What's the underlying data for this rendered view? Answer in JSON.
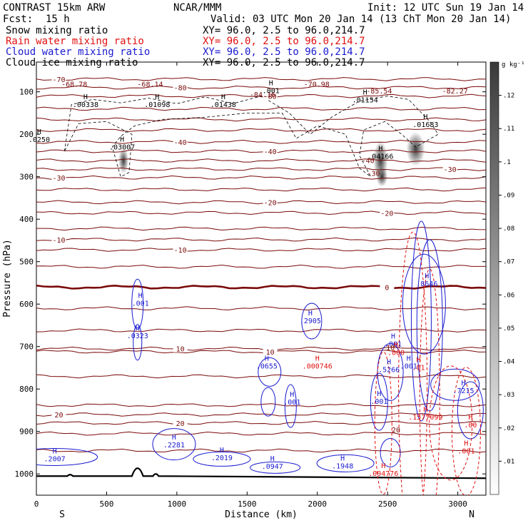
{
  "header": {
    "model": "CONTRAST 15km ARW",
    "org": "NCAR/MMM",
    "init": "Init: 12 UTC Sun 19 Jan 14",
    "fcst_label": "Fcst:",
    "fcst_value": "15 h",
    "valid": "Valid: 03 UTC Mon 20 Jan 14 (13 ChT Mon 20 Jan 14)"
  },
  "legend": [
    {
      "label": "Snow mixing ratio",
      "xy": "XY=  96.0,  2.5 to  96.0,214.7",
      "color": "#000000"
    },
    {
      "label": "Rain water mixing ratio",
      "xy": "XY=  96.0,  2.5 to  96.0,214.7",
      "color": "#e01010"
    },
    {
      "label": "Cloud water mixing ratio",
      "xy": "XY=  96.0,  2.5 to  96.0,214.7",
      "color": "#1a1ad0"
    },
    {
      "label": "Cloud ice mixing ratio",
      "xy": "XY=  96.0,  2.5 to  96.0,214.7",
      "color": "#000000"
    }
  ],
  "colorbar": {
    "unit": "g kg⁻¹",
    "levels": [
      ".01",
      ".02",
      ".03",
      ".04",
      ".05",
      ".06",
      ".07",
      ".08",
      ".09",
      ".1",
      ".11",
      ".12"
    ]
  },
  "chart_data": {
    "type": "cross-section",
    "xlabel": "Distance (km)",
    "ylabel": "Pressure (hPa)",
    "xlim": [
      0,
      3200
    ],
    "ylim": [
      1050,
      30
    ],
    "x_ticks": [
      0,
      500,
      1000,
      1500,
      2000,
      2500,
      3000
    ],
    "y_ticks": [
      100,
      200,
      300,
      400,
      500,
      600,
      700,
      800,
      900,
      1000
    ],
    "x_end_labels": {
      "left": "S",
      "right": "N"
    },
    "temperature_isotherms": [
      {
        "p": 70,
        "label": "-70"
      },
      {
        "p": 90,
        "label": "-80"
      },
      {
        "p": 110,
        "label": "-80"
      },
      {
        "p": 140,
        "label": ""
      },
      {
        "p": 165,
        "label": ""
      },
      {
        "p": 190,
        "label": ""
      },
      {
        "p": 218,
        "label": "-40"
      },
      {
        "p": 240,
        "label": "-40"
      },
      {
        "p": 262,
        "label": ""
      },
      {
        "p": 282,
        "label": "-30"
      },
      {
        "p": 302,
        "label": "-30"
      },
      {
        "p": 330,
        "label": ""
      },
      {
        "p": 360,
        "label": "-20"
      },
      {
        "p": 385,
        "label": "-20"
      },
      {
        "p": 422,
        "label": ""
      },
      {
        "p": 448,
        "label": "-10"
      },
      {
        "p": 472,
        "label": "-10"
      },
      {
        "p": 512,
        "label": ""
      },
      {
        "p": 560,
        "label": "0",
        "bold": true
      },
      {
        "p": 610,
        "label": ""
      },
      {
        "p": 662,
        "label": ""
      },
      {
        "p": 705,
        "label": "10"
      },
      {
        "p": 712,
        "label": "10"
      },
      {
        "p": 770,
        "label": ""
      },
      {
        "p": 838,
        "label": ""
      },
      {
        "p": 860,
        "label": "20"
      },
      {
        "p": 880,
        "label": "20"
      },
      {
        "p": 905,
        "label": ""
      },
      {
        "p": 945,
        "label": ""
      }
    ],
    "surface_pressure": 1005,
    "min_labels": [
      {
        "x": 270,
        "p": 88,
        "text": "-68.78"
      },
      {
        "x": 810,
        "p": 88,
        "text": "-68.14"
      },
      {
        "x": 1995,
        "p": 88,
        "text": "-70.98"
      },
      {
        "x": 1610,
        "p": 112,
        "text": "-84.16"
      },
      {
        "x": 2440,
        "p": 104,
        "text": "-85.54"
      },
      {
        "x": 2980,
        "p": 104,
        "text": "-82.27"
      }
    ],
    "snow_maxima": [
      {
        "x": 350,
        "p": 136,
        "text": ".00338"
      },
      {
        "x": 860,
        "p": 136,
        "text": ".01098"
      },
      {
        "x": 1330,
        "p": 136,
        "text": ".01438"
      },
      {
        "x": 1670,
        "p": 103,
        "text": ".001"
      },
      {
        "x": 2340,
        "p": 125,
        "text": ".01154"
      },
      {
        "x": 2770,
        "p": 183,
        "text": ".01683"
      },
      {
        "x": 610,
        "p": 236,
        "text": ".03007"
      },
      {
        "x": 2450,
        "p": 258,
        "text": ".04166"
      },
      {
        "x": 20,
        "p": 218,
        "text": ".0250"
      }
    ],
    "cloud_water_maxima": [
      {
        "x": 740,
        "p": 604,
        "text": ".001"
      },
      {
        "x": 720,
        "p": 680,
        "text": ".0323"
      },
      {
        "x": 1950,
        "p": 645,
        "text": ".2905"
      },
      {
        "x": 1640,
        "p": 752,
        "text": ".0655"
      },
      {
        "x": 1820,
        "p": 837,
        "text": ".001"
      },
      {
        "x": 2510,
        "p": 760,
        "text": ".5266"
      },
      {
        "x": 2440,
        "p": 835,
        "text": ".001"
      },
      {
        "x": 2780,
        "p": 558,
        "text": ".8646"
      },
      {
        "x": 3040,
        "p": 810,
        "text": ".7215"
      },
      {
        "x": 2540,
        "p": 700,
        "text": ".001"
      },
      {
        "x": 2650,
        "p": 752,
        "text": ".001"
      },
      {
        "x": 130,
        "p": 970,
        "text": ".2007"
      },
      {
        "x": 980,
        "p": 937,
        "text": ".2281"
      },
      {
        "x": 1320,
        "p": 968,
        "text": ".2019"
      },
      {
        "x": 1680,
        "p": 988,
        "text": ".0947"
      },
      {
        "x": 2180,
        "p": 987,
        "text": ".1948"
      }
    ],
    "rain_maxima": [
      {
        "x": 2000,
        "p": 752,
        "text": ".000746"
      },
      {
        "x": 2560,
        "p": 720,
        "text": ".000"
      },
      {
        "x": 2720,
        "p": 755,
        "text": ".01"
      },
      {
        "x": 2770,
        "p": 872,
        "text": ".1577099"
      },
      {
        "x": 2470,
        "p": 1005,
        "text": ".004776"
      },
      {
        "x": 3060,
        "p": 952,
        "text": ".001"
      },
      {
        "x": 3090,
        "p": 890,
        "text": ".00"
      }
    ],
    "extra_labels": [
      {
        "x": 2360,
        "p": 268,
        "text": "-40",
        "color": "#7a0a0a"
      },
      {
        "x": 2400,
        "p": 298,
        "text": "-30",
        "color": "#7a0a0a"
      },
      {
        "x": 2520,
        "p": 708,
        "text": "10",
        "color": "#7a0a0a"
      },
      {
        "x": 2560,
        "p": 902,
        "text": "20",
        "color": "#7a0a0a"
      }
    ]
  }
}
